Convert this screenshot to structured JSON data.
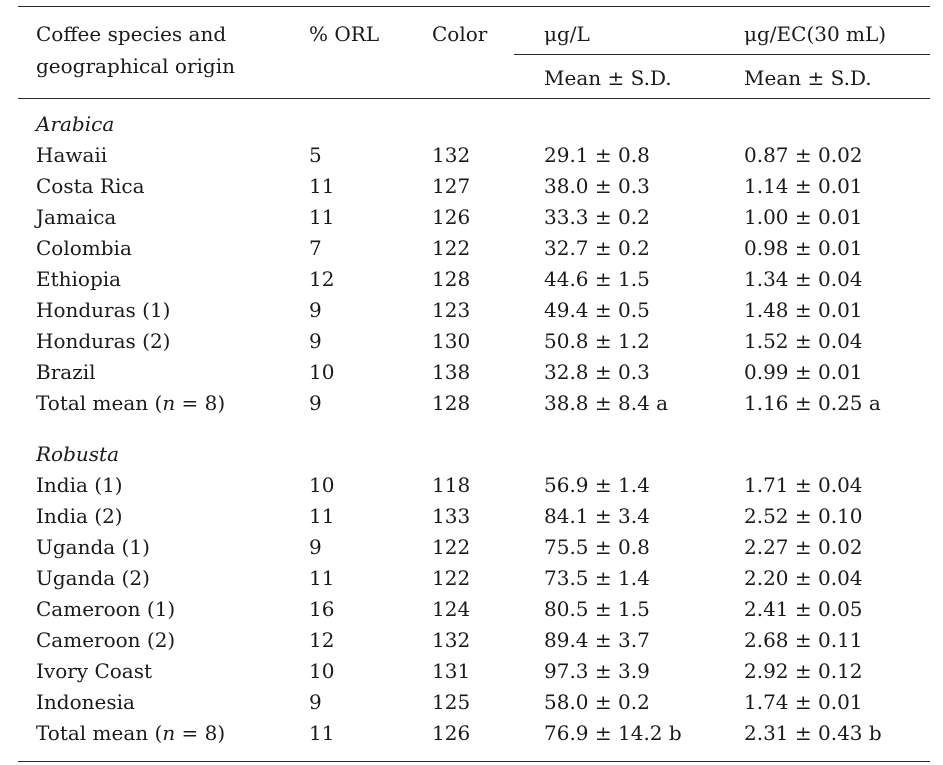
{
  "header": {
    "col_species_line1": "Coffee species and",
    "col_species_line2": "geographical origin",
    "col_orl": "% ORL",
    "col_color": "Color",
    "col_ugl": "μg/L",
    "col_ugec": "μg/EC(30 mL)",
    "sub_ugl": "Mean ± S.D.",
    "sub_ugec": "Mean ± S.D."
  },
  "sections": [
    {
      "name": "Arabica",
      "rows": [
        {
          "origin": "Hawaii",
          "orl": "5",
          "color": "132",
          "ugl": "29.1 ± 0.8",
          "ugec": "0.87 ± 0.02"
        },
        {
          "origin": "Costa Rica",
          "orl": "11",
          "color": "127",
          "ugl": "38.0 ± 0.3",
          "ugec": "1.14 ± 0.01"
        },
        {
          "origin": "Jamaica",
          "orl": "11",
          "color": "126",
          "ugl": "33.3 ± 0.2",
          "ugec": "1.00 ± 0.01"
        },
        {
          "origin": "Colombia",
          "orl": "7",
          "color": "122",
          "ugl": "32.7 ± 0.2",
          "ugec": "0.98 ± 0.01"
        },
        {
          "origin": "Ethiopia",
          "orl": "12",
          "color": "128",
          "ugl": "44.6 ± 1.5",
          "ugec": "1.34 ± 0.04"
        },
        {
          "origin": "Honduras (1)",
          "orl": "9",
          "color": "123",
          "ugl": "49.4 ± 0.5",
          "ugec": "1.48 ± 0.01"
        },
        {
          "origin": "Honduras (2)",
          "orl": "9",
          "color": "130",
          "ugl": "50.8 ± 1.2",
          "ugec": "1.52 ± 0.04"
        },
        {
          "origin": "Brazil",
          "orl": "10",
          "color": "138",
          "ugl": "32.8 ± 0.3",
          "ugec": "0.99 ± 0.01"
        }
      ],
      "total": {
        "label_pre": "Total mean (",
        "label_n": "n",
        "label_post": " = 8)",
        "orl": "9",
        "color": "128",
        "ugl": "38.8 ± 8.4 a",
        "ugec": "1.16 ± 0.25 a"
      }
    },
    {
      "name": "Robusta",
      "rows": [
        {
          "origin": "India (1)",
          "orl": "10",
          "color": "118",
          "ugl": "56.9 ± 1.4",
          "ugec": "1.71 ± 0.04"
        },
        {
          "origin": "India (2)",
          "orl": "11",
          "color": "133",
          "ugl": "84.1 ± 3.4",
          "ugec": "2.52 ± 0.10"
        },
        {
          "origin": "Uganda (1)",
          "orl": "9",
          "color": "122",
          "ugl": "75.5 ± 0.8",
          "ugec": "2.27 ± 0.02"
        },
        {
          "origin": "Uganda (2)",
          "orl": "11",
          "color": "122",
          "ugl": "73.5 ± 1.4",
          "ugec": "2.20 ± 0.04"
        },
        {
          "origin": "Cameroon (1)",
          "orl": "16",
          "color": "124",
          "ugl": "80.5 ± 1.5",
          "ugec": "2.41 ± 0.05"
        },
        {
          "origin": "Cameroon (2)",
          "orl": "12",
          "color": "132",
          "ugl": "89.4 ± 3.7",
          "ugec": "2.68 ± 0.11"
        },
        {
          "origin": "Ivory Coast",
          "orl": "10",
          "color": "131",
          "ugl": "97.3 ± 3.9",
          "ugec": "2.92 ± 0.12"
        },
        {
          "origin": "Indonesia",
          "orl": "9",
          "color": "125",
          "ugl": "58.0 ± 0.2",
          "ugec": "1.74 ± 0.01"
        }
      ],
      "total": {
        "label_pre": "Total mean (",
        "label_n": "n",
        "label_post": " = 8)",
        "orl": "11",
        "color": "126",
        "ugl": "76.9 ± 14.2 b",
        "ugec": "2.31 ± 0.43 b"
      }
    }
  ]
}
